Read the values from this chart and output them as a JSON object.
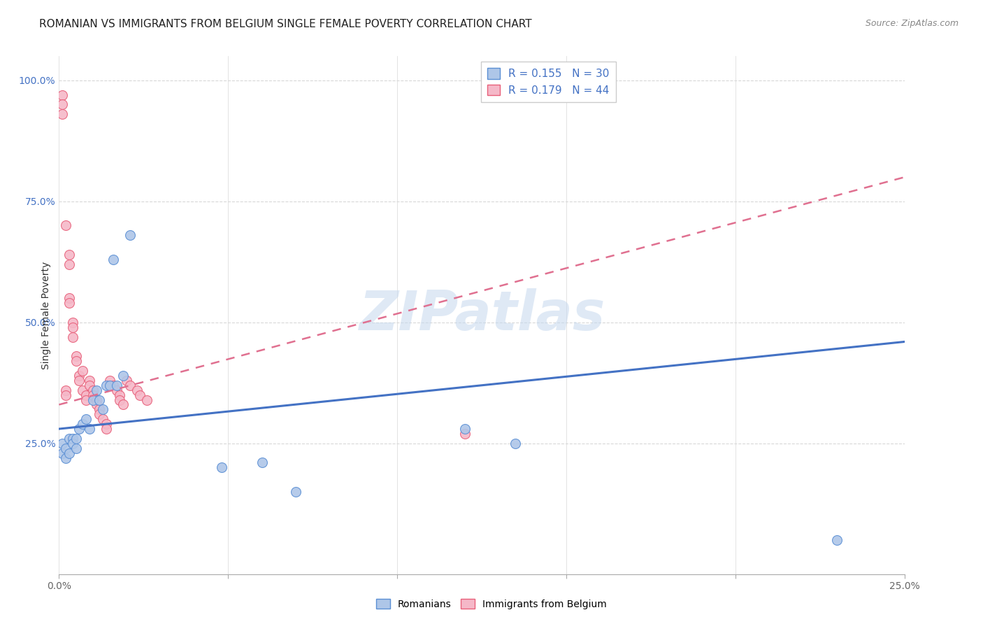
{
  "title": "ROMANIAN VS IMMIGRANTS FROM BELGIUM SINGLE FEMALE POVERTY CORRELATION CHART",
  "source": "Source: ZipAtlas.com",
  "ylabel": "Single Female Poverty",
  "watermark": "ZIPatlas",
  "xlim": [
    0,
    0.25
  ],
  "ylim": [
    -0.02,
    1.05
  ],
  "xtick_positions": [
    0.0,
    0.05,
    0.1,
    0.15,
    0.2,
    0.25
  ],
  "xtick_labels_show": [
    "0.0%",
    "",
    "",
    "",
    "",
    "25.0%"
  ],
  "yticks": [
    0.0,
    0.25,
    0.5,
    0.75,
    1.0
  ],
  "ytick_labels": [
    "",
    "25.0%",
    "50.0%",
    "75.0%",
    "100.0%"
  ],
  "blue_R": 0.155,
  "blue_N": 30,
  "pink_R": 0.179,
  "pink_N": 44,
  "blue_color": "#aec6e8",
  "pink_color": "#f5b8c8",
  "blue_edge_color": "#5b8fd4",
  "pink_edge_color": "#e8607a",
  "blue_line_color": "#4472c4",
  "pink_line_color": "#e07090",
  "background_color": "#ffffff",
  "grid_color": "#d8d8d8",
  "legend_label_blue": "Romanians",
  "legend_label_pink": "Immigrants from Belgium",
  "blue_x": [
    0.001,
    0.001,
    0.002,
    0.002,
    0.003,
    0.003,
    0.004,
    0.004,
    0.005,
    0.005,
    0.006,
    0.007,
    0.008,
    0.009,
    0.01,
    0.011,
    0.012,
    0.013,
    0.014,
    0.015,
    0.016,
    0.017,
    0.019,
    0.021,
    0.048,
    0.06,
    0.07,
    0.12,
    0.135,
    0.23
  ],
  "blue_y": [
    0.25,
    0.23,
    0.24,
    0.22,
    0.26,
    0.23,
    0.26,
    0.25,
    0.26,
    0.24,
    0.28,
    0.29,
    0.3,
    0.28,
    0.34,
    0.36,
    0.34,
    0.32,
    0.37,
    0.37,
    0.63,
    0.37,
    0.39,
    0.68,
    0.2,
    0.21,
    0.15,
    0.28,
    0.25,
    0.05
  ],
  "pink_x": [
    0.001,
    0.001,
    0.001,
    0.002,
    0.002,
    0.002,
    0.003,
    0.003,
    0.003,
    0.003,
    0.004,
    0.004,
    0.004,
    0.005,
    0.005,
    0.006,
    0.006,
    0.007,
    0.007,
    0.008,
    0.008,
    0.009,
    0.009,
    0.01,
    0.01,
    0.011,
    0.011,
    0.012,
    0.012,
    0.013,
    0.014,
    0.014,
    0.015,
    0.016,
    0.017,
    0.018,
    0.018,
    0.019,
    0.02,
    0.021,
    0.023,
    0.024,
    0.026,
    0.12
  ],
  "pink_y": [
    0.97,
    0.95,
    0.93,
    0.7,
    0.36,
    0.35,
    0.64,
    0.62,
    0.55,
    0.54,
    0.5,
    0.49,
    0.47,
    0.43,
    0.42,
    0.39,
    0.38,
    0.36,
    0.4,
    0.35,
    0.34,
    0.38,
    0.37,
    0.36,
    0.35,
    0.34,
    0.33,
    0.32,
    0.31,
    0.3,
    0.29,
    0.28,
    0.38,
    0.37,
    0.36,
    0.35,
    0.34,
    0.33,
    0.38,
    0.37,
    0.36,
    0.35,
    0.34,
    0.27
  ],
  "blue_line_x0": 0.0,
  "blue_line_x1": 0.25,
  "blue_line_y0": 0.28,
  "blue_line_y1": 0.46,
  "pink_line_x0": 0.0,
  "pink_line_x1": 0.25,
  "pink_line_y0": 0.33,
  "pink_line_y1": 0.8,
  "title_fontsize": 11,
  "source_fontsize": 9,
  "axis_label_fontsize": 10,
  "tick_fontsize": 10,
  "legend_fontsize": 11,
  "marker_size": 100
}
